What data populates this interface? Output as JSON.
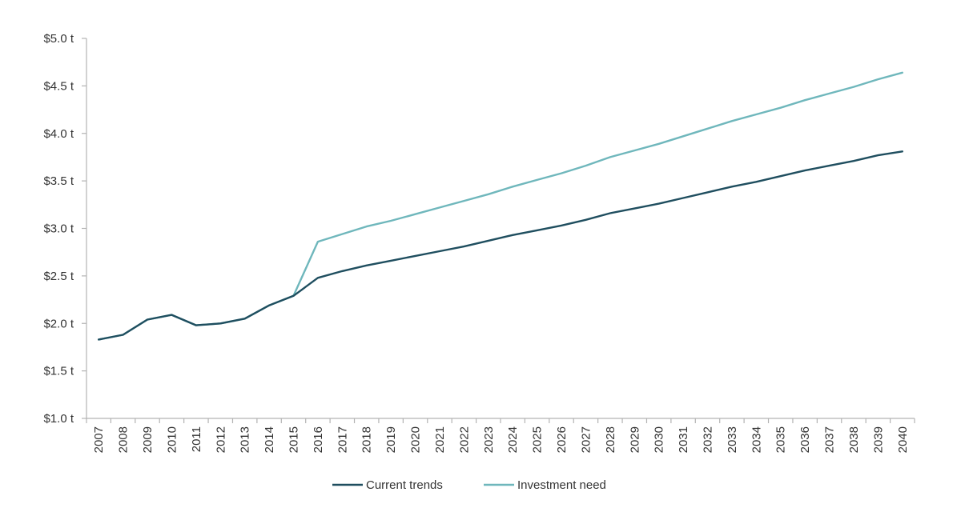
{
  "chart_data": {
    "type": "line",
    "title": "",
    "xlabel": "",
    "ylabel": "",
    "x": [
      "2007",
      "2008",
      "2009",
      "2010",
      "2011",
      "2012",
      "2013",
      "2014",
      "2015",
      "2016",
      "2017",
      "2018",
      "2019",
      "2020",
      "2021",
      "2022",
      "2023",
      "2024",
      "2025",
      "2026",
      "2027",
      "2028",
      "2029",
      "2030",
      "2031",
      "2032",
      "2033",
      "2034",
      "2035",
      "2036",
      "2037",
      "2038",
      "2039",
      "2040"
    ],
    "y_ticks": [
      {
        "value": 1.0,
        "label": "$1.0 t"
      },
      {
        "value": 1.5,
        "label": "$1.5 t"
      },
      {
        "value": 2.0,
        "label": "$2.0 t"
      },
      {
        "value": 2.5,
        "label": "$2.5 t"
      },
      {
        "value": 3.0,
        "label": "$3.0 t"
      },
      {
        "value": 3.5,
        "label": "$3.5 t"
      },
      {
        "value": 4.0,
        "label": "$4.0 t"
      },
      {
        "value": 4.5,
        "label": "$4.5 t"
      },
      {
        "value": 5.0,
        "label": "$5.0 t"
      }
    ],
    "ylim": [
      1.0,
      5.0
    ],
    "grid": false,
    "legend_position": "bottom",
    "series": [
      {
        "name": "Current trends",
        "color": "#1f4e5f",
        "values": [
          1.83,
          1.88,
          2.04,
          2.09,
          1.98,
          2.0,
          2.05,
          2.19,
          2.29,
          2.48,
          2.55,
          2.61,
          2.66,
          2.71,
          2.76,
          2.81,
          2.87,
          2.93,
          2.98,
          3.03,
          3.09,
          3.16,
          3.21,
          3.26,
          3.32,
          3.38,
          3.44,
          3.49,
          3.55,
          3.61,
          3.66,
          3.71,
          3.77,
          3.81
        ]
      },
      {
        "name": "Investment need",
        "color": "#6fb7bc",
        "values": [
          1.83,
          1.88,
          2.04,
          2.09,
          1.98,
          2.0,
          2.05,
          2.19,
          2.29,
          2.86,
          2.94,
          3.02,
          3.08,
          3.15,
          3.22,
          3.29,
          3.36,
          3.44,
          3.51,
          3.58,
          3.66,
          3.75,
          3.82,
          3.89,
          3.97,
          4.05,
          4.13,
          4.2,
          4.27,
          4.35,
          4.42,
          4.49,
          4.57,
          4.64
        ]
      }
    ]
  }
}
